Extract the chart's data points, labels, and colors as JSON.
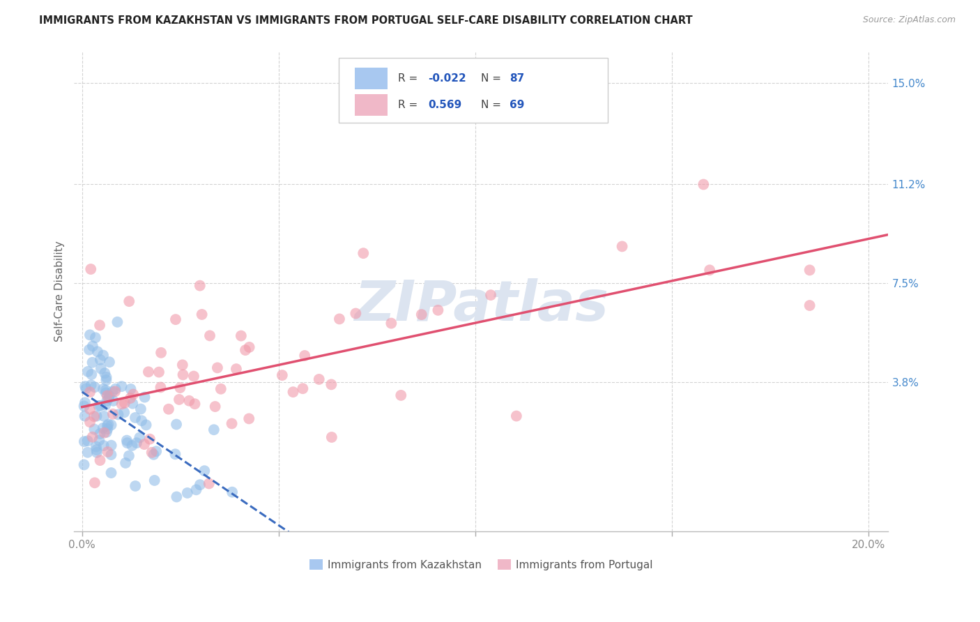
{
  "title": "IMMIGRANTS FROM KAZAKHSTAN VS IMMIGRANTS FROM PORTUGAL SELF-CARE DISABILITY CORRELATION CHART",
  "source": "Source: ZipAtlas.com",
  "ylabel_label": "Self-Care Disability",
  "ytick_labels": [
    "15.0%",
    "11.2%",
    "7.5%",
    "3.8%"
  ],
  "ytick_values": [
    0.15,
    0.112,
    0.075,
    0.038
  ],
  "xtick_values": [
    0.0,
    0.05,
    0.1,
    0.15,
    0.2
  ],
  "xlim": [
    -0.002,
    0.205
  ],
  "ylim": [
    -0.018,
    0.162
  ],
  "kazakhstan_R": -0.022,
  "kazakhstan_N": 87,
  "portugal_R": 0.569,
  "portugal_N": 69,
  "kazakhstan_color": "#91bde8",
  "portugal_color": "#f09aaa",
  "kazakhstan_line_color": "#3a6bbf",
  "portugal_line_color": "#e05070",
  "background_color": "#ffffff",
  "grid_color": "#c8c8c8",
  "watermark_color": "#dce4f0",
  "legend_box_color": "#a8c8f0",
  "legend_port_color": "#f0b8c8",
  "bottom_legend_kaz_color": "#a8c8f0",
  "bottom_legend_port_color": "#f0b8c8"
}
